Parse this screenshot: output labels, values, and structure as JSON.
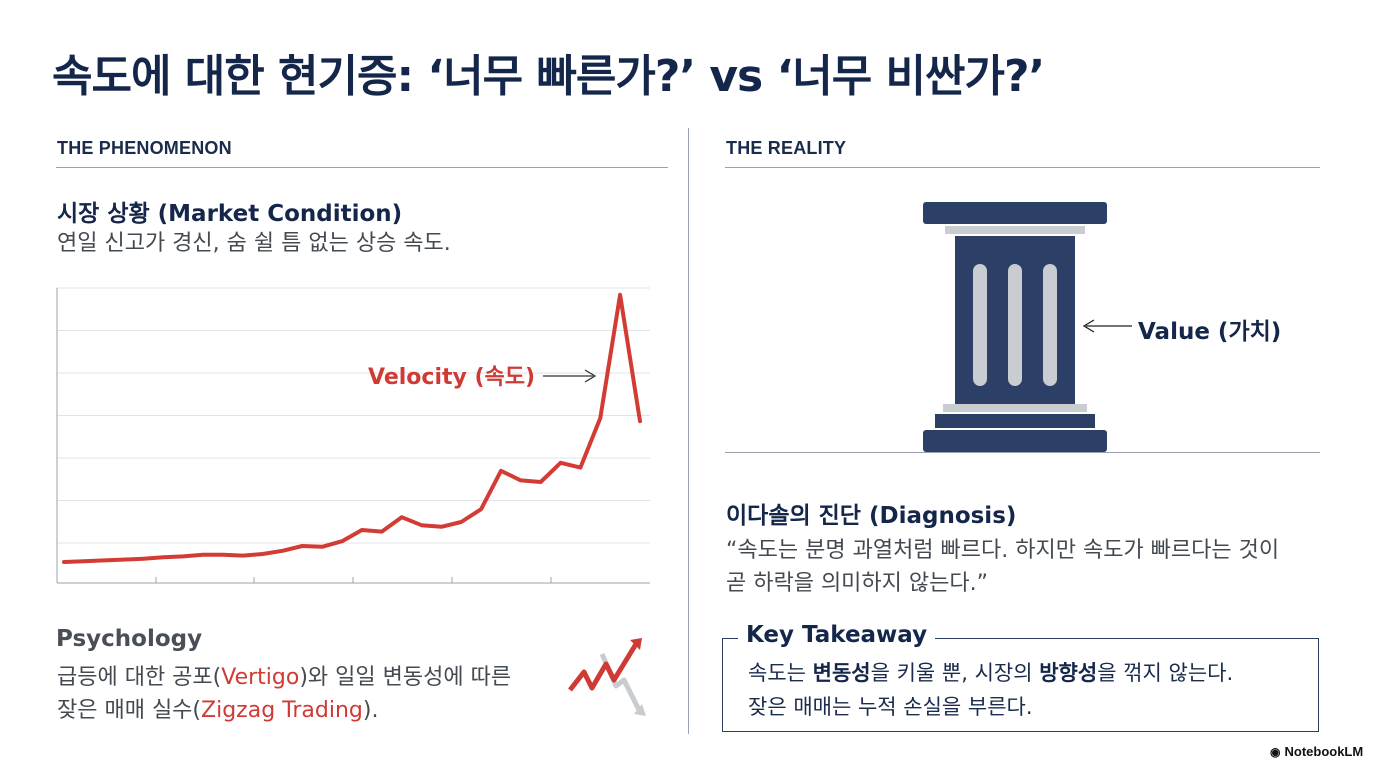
{
  "title": "속도에 대한 현기증: ‘너무 빠른가?’ vs ‘너무 비싼가?’",
  "left": {
    "section_label": "THE PHENOMENON",
    "market_heading": "시장 상황 (Market Condition)",
    "market_text": "연일 신고가 경신, 숨 쉴 틈 없는 상승 속도.",
    "velocity_label": "Velocity (속도)",
    "psychology_heading": "Psychology",
    "psychology_line1": {
      "a": "급등에 대한 공포(",
      "b": "Vertigo",
      "c": ")와 일일 변동성에 따른"
    },
    "psychology_line2": {
      "a": "잦은 매매 실수(",
      "b": "Zigzag Trading",
      "c": ")."
    }
  },
  "right": {
    "section_label": "THE REALITY",
    "value_label": "Value (가치)",
    "diagnosis_heading": "이다솔의 진단 (Diagnosis)",
    "diagnosis_line1": "“속도는 분명 과열처럼 빠르다. 하지만 속도가 빠르다는 것이",
    "diagnosis_line2": "곧 하락을 의미하지 않는다.”",
    "takeaway_title": "Key Takeaway",
    "takeaway_line1": {
      "a": "속도는 ",
      "b": "변동성",
      "c": "을 키울 뿐, 시장의 ",
      "d": "방향성",
      "e": "을 꺾지 않는다."
    },
    "takeaway_line2": "잦은 매매는 누적 손실을 부른다."
  },
  "branding": "NotebookLM",
  "colors": {
    "navy": "#14274a",
    "red": "#d03a35",
    "pillar": "#2c4067",
    "pillar_stripe": "#c9ccd1"
  },
  "chart_data": {
    "type": "line",
    "series": [
      {
        "values": [
          5,
          5.5,
          6,
          6.5,
          7,
          8,
          8.5,
          9.5,
          9.5,
          9,
          10,
          12,
          15,
          14.5,
          18,
          25,
          24,
          33,
          28,
          27,
          30,
          38,
          62,
          56,
          55,
          67,
          64,
          95,
          172,
          93
        ]
      }
    ],
    "ylim": [
      0,
      175
    ],
    "grid": true
  }
}
